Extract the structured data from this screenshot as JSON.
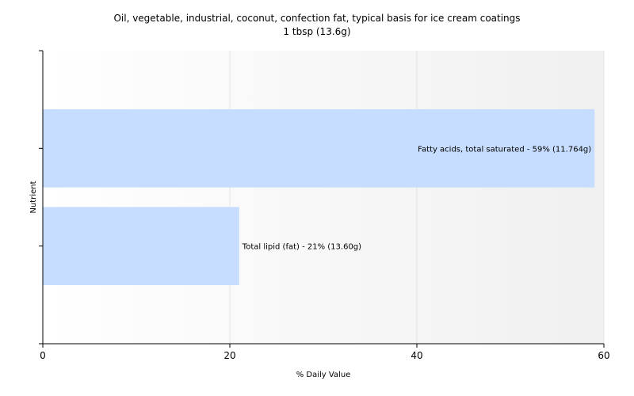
{
  "chart_data": {
    "type": "bar",
    "orientation": "horizontal",
    "title": "Oil, vegetable, industrial, coconut, confection fat, typical basis for ice cream coatings",
    "subtitle": "1 tbsp (13.6g)",
    "xlabel": "% Daily Value",
    "ylabel": "Nutrient",
    "xlim": [
      0,
      60
    ],
    "xticks": [
      "0",
      "20",
      "40",
      "60"
    ],
    "grid": "vertical",
    "bar_color": "#c6ddff",
    "categories": [
      "Fatty acids, total saturated",
      "Total lipid (fat)"
    ],
    "values": [
      59,
      21
    ],
    "data_labels": [
      "Fatty acids, total saturated - 59% (11.764g)",
      "Total lipid (fat) - 21% (13.60g)"
    ]
  }
}
